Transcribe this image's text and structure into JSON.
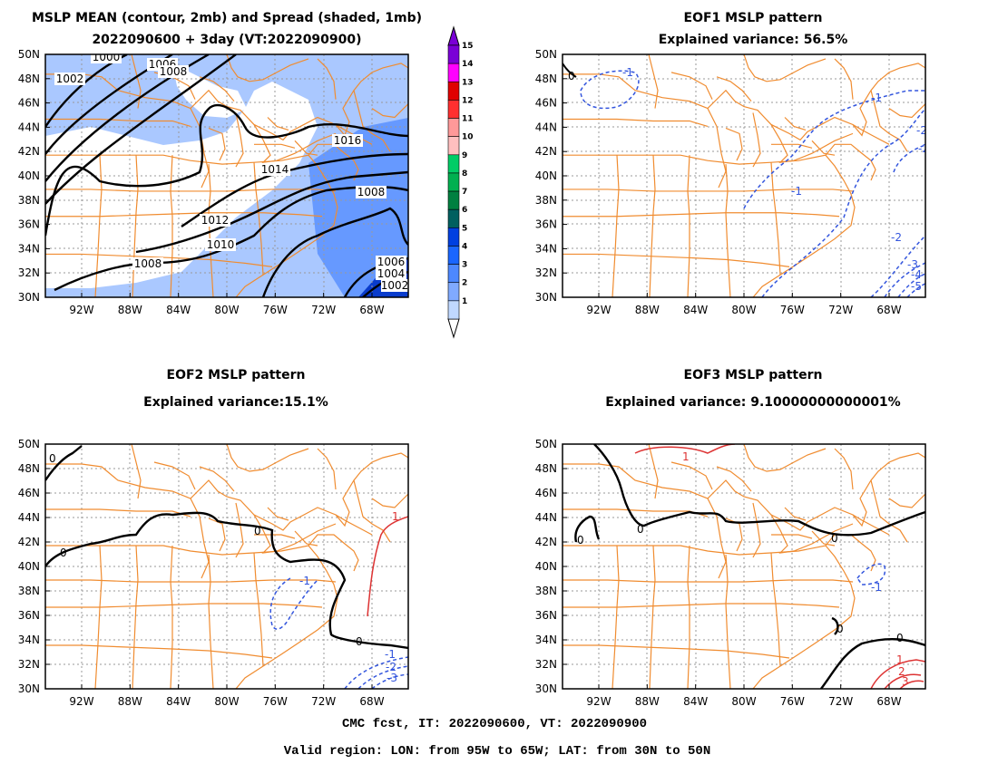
{
  "panels": [
    {
      "id": "mean",
      "title_line1": "MSLP MEAN (contour, 2mb) and Spread (shaded, 1mb)",
      "title_line2": "2022090600 + 3day (VT:2022090900)",
      "contour_labels": [
        "1000",
        "1002",
        "1006",
        "1008",
        "1016",
        "1014",
        "1008",
        "1012",
        "1010",
        "1008",
        "1006",
        "1004",
        "1002"
      ]
    },
    {
      "id": "eof1",
      "title_line1": "EOF1 MSLP pattern",
      "title_line2": "Explained variance: 56.5%",
      "contour_labels": [
        "0",
        "-1",
        "-1",
        "-2",
        "-1",
        "-2",
        "-2",
        "-3",
        "-4",
        "-5"
      ]
    },
    {
      "id": "eof2",
      "title_line1": "EOF2 MSLP pattern",
      "title_line2": "Explained variance:15.1%",
      "contour_labels": [
        "0",
        "0",
        "0",
        "-1",
        "1",
        "0",
        "-1",
        "-2",
        "-3"
      ]
    },
    {
      "id": "eof3",
      "title_line1": "EOF3 MSLP pattern",
      "title_line2": "Explained variance: 9.10000000000001%",
      "contour_labels": [
        "1",
        "0",
        "0",
        "0",
        "-1",
        "0",
        "0",
        "1",
        "2",
        "3"
      ]
    }
  ],
  "axes": {
    "lat_labels": [
      "50N",
      "48N",
      "46N",
      "44N",
      "42N",
      "40N",
      "38N",
      "36N",
      "34N",
      "32N",
      "30N"
    ],
    "lon_labels": [
      "92W",
      "88W",
      "84W",
      "80W",
      "76W",
      "72W",
      "68W"
    ]
  },
  "colorbar": {
    "labels": [
      "15",
      "14",
      "13",
      "12",
      "11",
      "10",
      "9",
      "8",
      "7",
      "6",
      "5",
      "4",
      "3",
      "2",
      "1"
    ],
    "colors": [
      "#7a00d6",
      "#ff00ff",
      "#e00000",
      "#ff3030",
      "#ff9999",
      "#ffbfbf",
      "#00cc66",
      "#00b050",
      "#008040",
      "#006060",
      "#0040e0",
      "#1a66ff",
      "#4d88ff",
      "#80aaff",
      "#c0d8ff"
    ]
  },
  "colors": {
    "state_lines": "#f08c30",
    "mean_contour": "#000000",
    "spread_shade_light": "#aac8ff",
    "spread_shade_mid": "#6699ff",
    "spread_shade_dark": "#0a3ccc",
    "eof_negative": "#3355dd",
    "eof_positive": "#dd3333",
    "eof_zero": "#000000",
    "grid": "#999999"
  },
  "footer": {
    "line1": "CMC fcst, IT: 2022090600, VT: 2022090900",
    "line2": "Valid region: LON: from 95W to 65W; LAT: from 30N to 50N"
  }
}
